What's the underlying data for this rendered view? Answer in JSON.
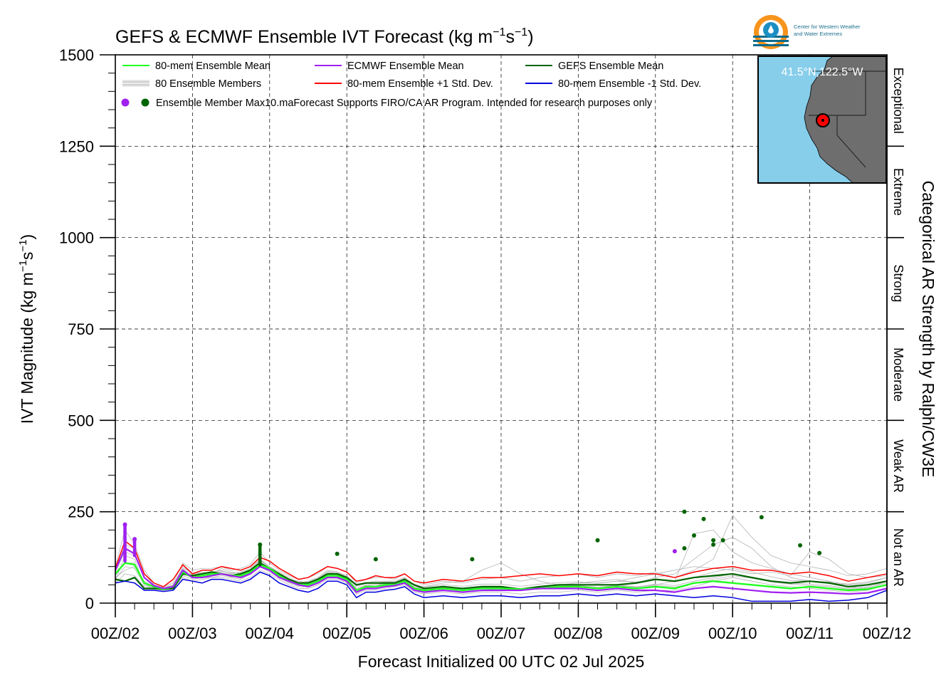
{
  "header": {
    "title_main": "GEFS & ECMWF Ensemble IVT Forecast (kg m",
    "title_sup1": "−1",
    "title_mid": "s",
    "title_sup2": "−1",
    "title_end": ")"
  },
  "logo": {
    "line1": "Center for Western Weather",
    "line2": "and Water Extremes",
    "icon": "cw3e-water-drop-logo"
  },
  "inset_map": {
    "location_label": "41.5°N,122.5°W",
    "ocean_color": "#87ceeb",
    "land_color": "#6e6e6e",
    "marker_color": "#ff0000"
  },
  "legend": {
    "items": [
      {
        "label": "80-mem Ensemble Mean",
        "color": "#22ff22",
        "kind": "line"
      },
      {
        "label": "ECMWF Ensemble Mean",
        "color": "#a020f0",
        "kind": "line"
      },
      {
        "label": "GEFS Ensemble Mean",
        "color": "#006400",
        "kind": "line"
      },
      {
        "label": "80 Ensemble Members",
        "color": "#b4b4b4",
        "kind": "members"
      },
      {
        "label": "80-mem Ensemble +1 Std. Dev.",
        "color": "#ff0000",
        "kind": "line"
      },
      {
        "label": "80-mem Ensemble -1 Std. Dev.",
        "color": "#0000dd",
        "kind": "line"
      }
    ],
    "max_label": "Ensemble Member Max",
    "disclaimer": "10.maForecast Supports FIRO/CA AR Program. Intended for research purposes only"
  },
  "chart_data": {
    "type": "line",
    "title": "GEFS & ECMWF Ensemble IVT Forecast (kg m−1s−1)",
    "xlabel": "Forecast Initialized 00 UTC 02 Jul 2025",
    "ylabel_main": "IVT Magnitude (kg m",
    "ylabel_sup1": "−1",
    "ylabel_mid": "s",
    "ylabel_sup2": "−1",
    "ylabel_end": ")",
    "right_axis_label": "Categorical AR Strength by Ralph/CW3E",
    "ylim": [
      0,
      1500
    ],
    "xlim_days": [
      0,
      10
    ],
    "yticks": [
      0,
      250,
      500,
      750,
      1000,
      1250,
      1500
    ],
    "xtick_labels": [
      "00Z/02",
      "00Z/03",
      "00Z/04",
      "00Z/05",
      "00Z/06",
      "00Z/07",
      "00Z/08",
      "00Z/09",
      "00Z/10",
      "00Z/11",
      "00Z/12"
    ],
    "grid": true,
    "legend_position": "top-left",
    "categories": [
      {
        "label": "Not an AR",
        "from": 0,
        "to": 250
      },
      {
        "label": "Weak AR",
        "from": 250,
        "to": 500
      },
      {
        "label": "Moderate",
        "from": 500,
        "to": 750
      },
      {
        "label": "Strong",
        "from": 750,
        "to": 1000
      },
      {
        "label": "Extreme",
        "from": 1000,
        "to": 1250
      },
      {
        "label": "Exceptional",
        "from": 1250,
        "to": 1500
      }
    ],
    "x": [
      0.0,
      0.125,
      0.25,
      0.375,
      0.5,
      0.625,
      0.75,
      0.875,
      1.0,
      1.125,
      1.25,
      1.375,
      1.5,
      1.625,
      1.75,
      1.875,
      2.0,
      2.125,
      2.25,
      2.375,
      2.5,
      2.625,
      2.75,
      2.875,
      3.0,
      3.125,
      3.25,
      3.375,
      3.5,
      3.625,
      3.75,
      3.875,
      4.0,
      4.25,
      4.5,
      4.75,
      5.0,
      5.25,
      5.5,
      5.75,
      6.0,
      6.25,
      6.5,
      6.75,
      7.0,
      7.25,
      7.5,
      7.75,
      8.0,
      8.25,
      8.5,
      8.75,
      9.0,
      9.25,
      9.5,
      9.75,
      10.0
    ],
    "series": [
      {
        "name": "80-mem Ensemble +1 Std. Dev.",
        "color": "#ff0000",
        "width": 1.5,
        "values": [
          95,
          170,
          150,
          80,
          55,
          45,
          65,
          105,
          80,
          90,
          90,
          100,
          95,
          90,
          100,
          125,
          115,
          95,
          80,
          65,
          70,
          85,
          100,
          95,
          85,
          60,
          65,
          75,
          70,
          70,
          80,
          60,
          55,
          65,
          60,
          70,
          70,
          75,
          80,
          75,
          80,
          75,
          85,
          80,
          80,
          70,
          85,
          95,
          100,
          90,
          90,
          80,
          85,
          75,
          60,
          70,
          80
        ]
      },
      {
        "name": "GEFS Ensemble Mean",
        "color": "#006400",
        "width": 2.2,
        "values": [
          65,
          60,
          70,
          40,
          40,
          38,
          40,
          80,
          75,
          80,
          85,
          80,
          75,
          80,
          90,
          110,
          95,
          80,
          65,
          55,
          55,
          65,
          80,
          80,
          70,
          50,
          55,
          55,
          55,
          55,
          65,
          50,
          40,
          45,
          40,
          45,
          45,
          38,
          45,
          50,
          50,
          50,
          50,
          55,
          65,
          60,
          70,
          75,
          80,
          70,
          60,
          55,
          60,
          55,
          45,
          50,
          60
        ]
      },
      {
        "name": "80-mem Ensemble Mean",
        "color": "#22ff22",
        "width": 2.4,
        "values": [
          80,
          110,
          105,
          55,
          45,
          38,
          45,
          85,
          70,
          75,
          80,
          80,
          75,
          75,
          85,
          105,
          95,
          75,
          60,
          50,
          50,
          60,
          75,
          75,
          65,
          35,
          45,
          45,
          50,
          50,
          60,
          40,
          35,
          40,
          35,
          40,
          40,
          38,
          40,
          45,
          45,
          40,
          45,
          40,
          45,
          40,
          55,
          60,
          55,
          50,
          45,
          40,
          45,
          40,
          35,
          38,
          50
        ]
      },
      {
        "name": "ECMWF Ensemble Mean",
        "color": "#a020f0",
        "width": 2.2,
        "values": [
          90,
          150,
          135,
          70,
          48,
          40,
          45,
          90,
          70,
          70,
          75,
          80,
          75,
          70,
          80,
          100,
          90,
          70,
          60,
          50,
          45,
          55,
          70,
          70,
          60,
          30,
          40,
          40,
          45,
          48,
          55,
          35,
          30,
          35,
          30,
          35,
          35,
          35,
          40,
          40,
          40,
          35,
          40,
          35,
          35,
          30,
          40,
          45,
          40,
          35,
          30,
          28,
          30,
          28,
          25,
          28,
          40
        ]
      },
      {
        "name": "80-mem Ensemble -1 Std. Dev.",
        "color": "#0000dd",
        "width": 1.5,
        "values": [
          55,
          60,
          55,
          35,
          35,
          32,
          35,
          65,
          60,
          55,
          65,
          65,
          60,
          55,
          65,
          85,
          75,
          55,
          45,
          35,
          30,
          40,
          60,
          60,
          50,
          15,
          30,
          30,
          35,
          38,
          45,
          25,
          15,
          20,
          15,
          20,
          20,
          15,
          20,
          20,
          25,
          20,
          25,
          20,
          25,
          20,
          15,
          20,
          15,
          5,
          5,
          5,
          10,
          5,
          8,
          15,
          35
        ]
      }
    ],
    "members": {
      "count": 80,
      "color": "#b4b4b4",
      "samples": [
        [
          70,
          90,
          100,
          60,
          45,
          40,
          50,
          95,
          85,
          80,
          85,
          90,
          80,
          85,
          95,
          120,
          100,
          85,
          70,
          55,
          60,
          70,
          90,
          85,
          75,
          50,
          55,
          60,
          60,
          60,
          70,
          50,
          45,
          55,
          60,
          90,
          110,
          80,
          60,
          50,
          55,
          60,
          65,
          55,
          70,
          80,
          120,
          160,
          180,
          150,
          100,
          70,
          60,
          55,
          50,
          55,
          70
        ],
        [
          60,
          130,
          120,
          50,
          40,
          35,
          40,
          75,
          65,
          70,
          70,
          75,
          70,
          65,
          80,
          100,
          85,
          70,
          55,
          45,
          45,
          55,
          75,
          70,
          60,
          30,
          40,
          40,
          45,
          50,
          55,
          40,
          35,
          35,
          30,
          35,
          40,
          35,
          40,
          45,
          45,
          40,
          50,
          45,
          50,
          60,
          190,
          200,
          140,
          110,
          95,
          80,
          70,
          60,
          45,
          40,
          60
        ],
        [
          90,
          160,
          150,
          80,
          50,
          42,
          50,
          100,
          80,
          85,
          80,
          95,
          85,
          80,
          90,
          115,
          100,
          80,
          65,
          60,
          55,
          65,
          85,
          80,
          70,
          40,
          50,
          50,
          55,
          55,
          65,
          45,
          40,
          45,
          40,
          45,
          45,
          40,
          45,
          50,
          55,
          55,
          60,
          70,
          80,
          90,
          100,
          95,
          90,
          80,
          85,
          75,
          140,
          120,
          80,
          70,
          75
        ],
        [
          55,
          80,
          75,
          45,
          40,
          36,
          40,
          70,
          60,
          65,
          70,
          70,
          65,
          60,
          70,
          90,
          80,
          65,
          50,
          40,
          40,
          50,
          65,
          65,
          55,
          25,
          35,
          35,
          40,
          45,
          50,
          30,
          25,
          30,
          25,
          30,
          30,
          25,
          30,
          30,
          35,
          30,
          35,
          30,
          35,
          35,
          45,
          60,
          70,
          60,
          50,
          45,
          40,
          35,
          30,
          35,
          50
        ],
        [
          100,
          200,
          160,
          90,
          55,
          45,
          55,
          110,
          90,
          95,
          95,
          100,
          90,
          95,
          105,
          140,
          110,
          90,
          75,
          65,
          70,
          80,
          100,
          95,
          85,
          55,
          65,
          70,
          70,
          65,
          80,
          60,
          50,
          60,
          55,
          65,
          70,
          60,
          70,
          75,
          80,
          70,
          80,
          75,
          85,
          70,
          90,
          120,
          240,
          180,
          130,
          110,
          100,
          90,
          75,
          80,
          95
        ],
        [
          75,
          110,
          110,
          55,
          42,
          38,
          45,
          85,
          75,
          75,
          80,
          85,
          78,
          75,
          85,
          110,
          95,
          75,
          62,
          50,
          52,
          62,
          78,
          78,
          66,
          40,
          48,
          50,
          52,
          52,
          62,
          44,
          38,
          42,
          38,
          42,
          42,
          38,
          42,
          48,
          48,
          44,
          48,
          44,
          52,
          48,
          60,
          70,
          80,
          70,
          60,
          55,
          52,
          48,
          40,
          45,
          60
        ],
        [
          65,
          100,
          95,
          50,
          44,
          37,
          42,
          80,
          70,
          72,
          78,
          80,
          72,
          72,
          82,
          108,
          92,
          72,
          58,
          48,
          48,
          58,
          72,
          72,
          62,
          34,
          42,
          44,
          48,
          50,
          58,
          38,
          32,
          38,
          34,
          40,
          38,
          36,
          40,
          42,
          44,
          40,
          46,
          42,
          48,
          44,
          55,
          65,
          75,
          68,
          58,
          52,
          48,
          45,
          38,
          42,
          55
        ],
        [
          85,
          140,
          130,
          70,
          48,
          42,
          48,
          92,
          78,
          82,
          84,
          88,
          82,
          82,
          92,
          118,
          100,
          80,
          66,
          56,
          58,
          68,
          86,
          84,
          72,
          46,
          54,
          56,
          58,
          58,
          68,
          48,
          44,
          50,
          46,
          52,
          52,
          46,
          52,
          56,
          58,
          54,
          60,
          58,
          64,
          58,
          70,
          85,
          95,
          85,
          72,
          62,
          60,
          58,
          52,
          58,
          70
        ]
      ]
    },
    "max_points": [
      {
        "x": 0.125,
        "y": 215,
        "color": "#a020f0"
      },
      {
        "x": 0.25,
        "y": 175,
        "color": "#a020f0"
      },
      {
        "x": 1.875,
        "y": 160,
        "color": "#006400"
      },
      {
        "x": 2.875,
        "y": 135,
        "color": "#006400"
      },
      {
        "x": 3.375,
        "y": 120,
        "color": "#006400"
      },
      {
        "x": 4.625,
        "y": 120,
        "color": "#006400"
      },
      {
        "x": 6.25,
        "y": 172,
        "color": "#006400"
      },
      {
        "x": 7.25,
        "y": 142,
        "color": "#a020f0"
      },
      {
        "x": 7.375,
        "y": 250,
        "color": "#006400"
      },
      {
        "x": 7.375,
        "y": 150,
        "color": "#006400"
      },
      {
        "x": 7.5,
        "y": 185,
        "color": "#006400"
      },
      {
        "x": 7.625,
        "y": 230,
        "color": "#006400"
      },
      {
        "x": 7.75,
        "y": 172,
        "color": "#006400"
      },
      {
        "x": 7.75,
        "y": 160,
        "color": "#006400"
      },
      {
        "x": 7.875,
        "y": 172,
        "color": "#006400"
      },
      {
        "x": 8.375,
        "y": 235,
        "color": "#006400"
      },
      {
        "x": 8.875,
        "y": 158,
        "color": "#006400"
      },
      {
        "x": 9.125,
        "y": 137,
        "color": "#006400"
      }
    ],
    "max_bars": [
      {
        "x": 0.125,
        "from": 115,
        "to": 215,
        "color": "#a020f0"
      },
      {
        "x": 0.25,
        "from": 130,
        "to": 175,
        "color": "#a020f0"
      },
      {
        "x": 1.875,
        "from": 105,
        "to": 160,
        "color": "#006400"
      }
    ]
  }
}
